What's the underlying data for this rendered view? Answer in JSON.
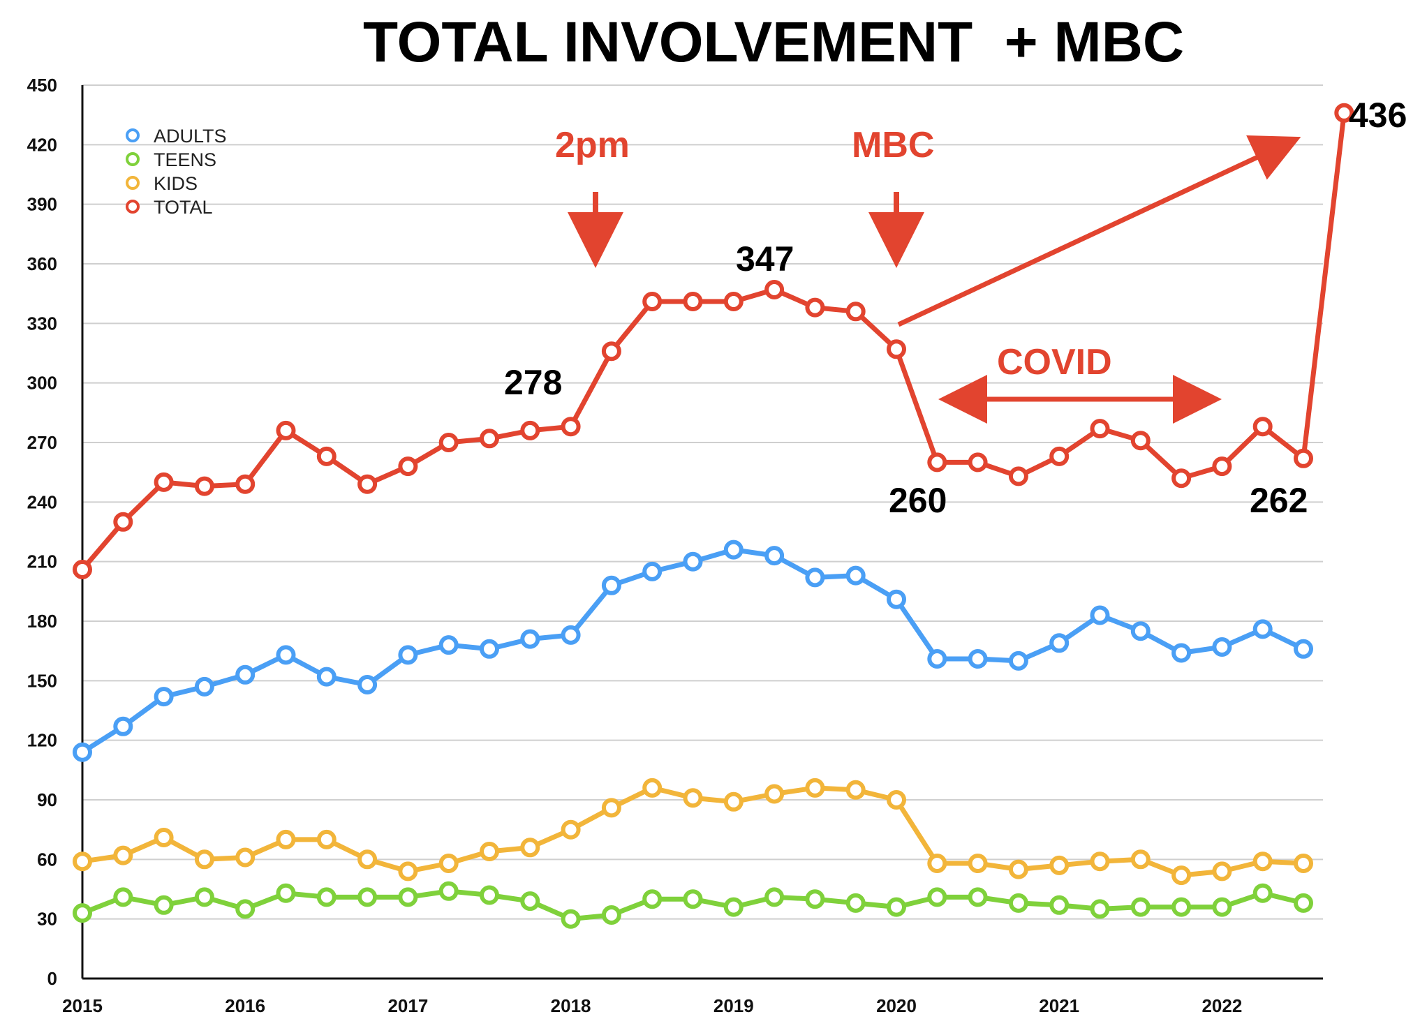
{
  "chart_data": {
    "type": "line",
    "title": "TOTAL INVOLVEMENT  + MBC",
    "xlabel": "",
    "ylabel": "",
    "ylim": [
      0,
      450
    ],
    "xlim": [
      2015,
      2022.77
    ],
    "yticks": [
      "0",
      "30",
      "60",
      "90",
      "120",
      "150",
      "180",
      "210",
      "240",
      "270",
      "300",
      "330",
      "360",
      "390",
      "420",
      "450"
    ],
    "xticks": [
      "2015",
      "2016",
      "2017",
      "2018",
      "2019",
      "2020",
      "2021",
      "2022"
    ],
    "grid": true,
    "legend_position": "top-left",
    "x": [
      2015,
      2015.25,
      2015.5,
      2015.75,
      2016,
      2016.25,
      2016.5,
      2016.75,
      2017,
      2017.25,
      2017.5,
      2017.75,
      2018,
      2018.25,
      2018.5,
      2018.75,
      2019,
      2019.25,
      2019.5,
      2019.75,
      2020,
      2020.25,
      2020.5,
      2020.75,
      2021,
      2021.25,
      2021.5,
      2021.75,
      2022,
      2022.25,
      2022.5
    ],
    "series": [
      {
        "name": "ADULTS",
        "color": "#4a9ff5",
        "values": [
          114,
          127,
          142,
          147,
          153,
          163,
          152,
          148,
          163,
          168,
          166,
          171,
          173,
          198,
          205,
          210,
          216,
          213,
          202,
          203,
          191,
          161,
          161,
          160,
          169,
          183,
          175,
          164,
          167,
          176,
          166
        ]
      },
      {
        "name": "TEENS",
        "color": "#7fd13b",
        "values": [
          33,
          41,
          37,
          41,
          35,
          43,
          41,
          41,
          41,
          44,
          42,
          39,
          30,
          32,
          40,
          40,
          36,
          41,
          40,
          38,
          36,
          41,
          41,
          38,
          37,
          35,
          36,
          36,
          36,
          43,
          38
        ]
      },
      {
        "name": "KIDS",
        "color": "#f2b53a",
        "values": [
          59,
          62,
          71,
          60,
          61,
          70,
          70,
          60,
          54,
          58,
          64,
          66,
          75,
          86,
          96,
          91,
          89,
          93,
          96,
          95,
          90,
          58,
          58,
          55,
          57,
          59,
          60,
          52,
          54,
          59,
          58
        ]
      },
      {
        "name": "TOTAL",
        "color": "#e2442f",
        "values": [
          206,
          230,
          250,
          248,
          249,
          276,
          263,
          249,
          258,
          270,
          272,
          276,
          278,
          316,
          341,
          341,
          341,
          347,
          338,
          336,
          317,
          260,
          260,
          253,
          263,
          277,
          271,
          252,
          258,
          278,
          262
        ]
      }
    ],
    "extra_point": {
      "series": "TOTAL",
      "x": 2022.75,
      "value": 436
    },
    "annotations": {
      "label_278": "278",
      "label_347": "347",
      "label_260": "260",
      "label_262": "262",
      "label_436": "436",
      "text_2pm": "2pm",
      "text_mbc": "MBC",
      "text_covid": "COVID"
    }
  }
}
